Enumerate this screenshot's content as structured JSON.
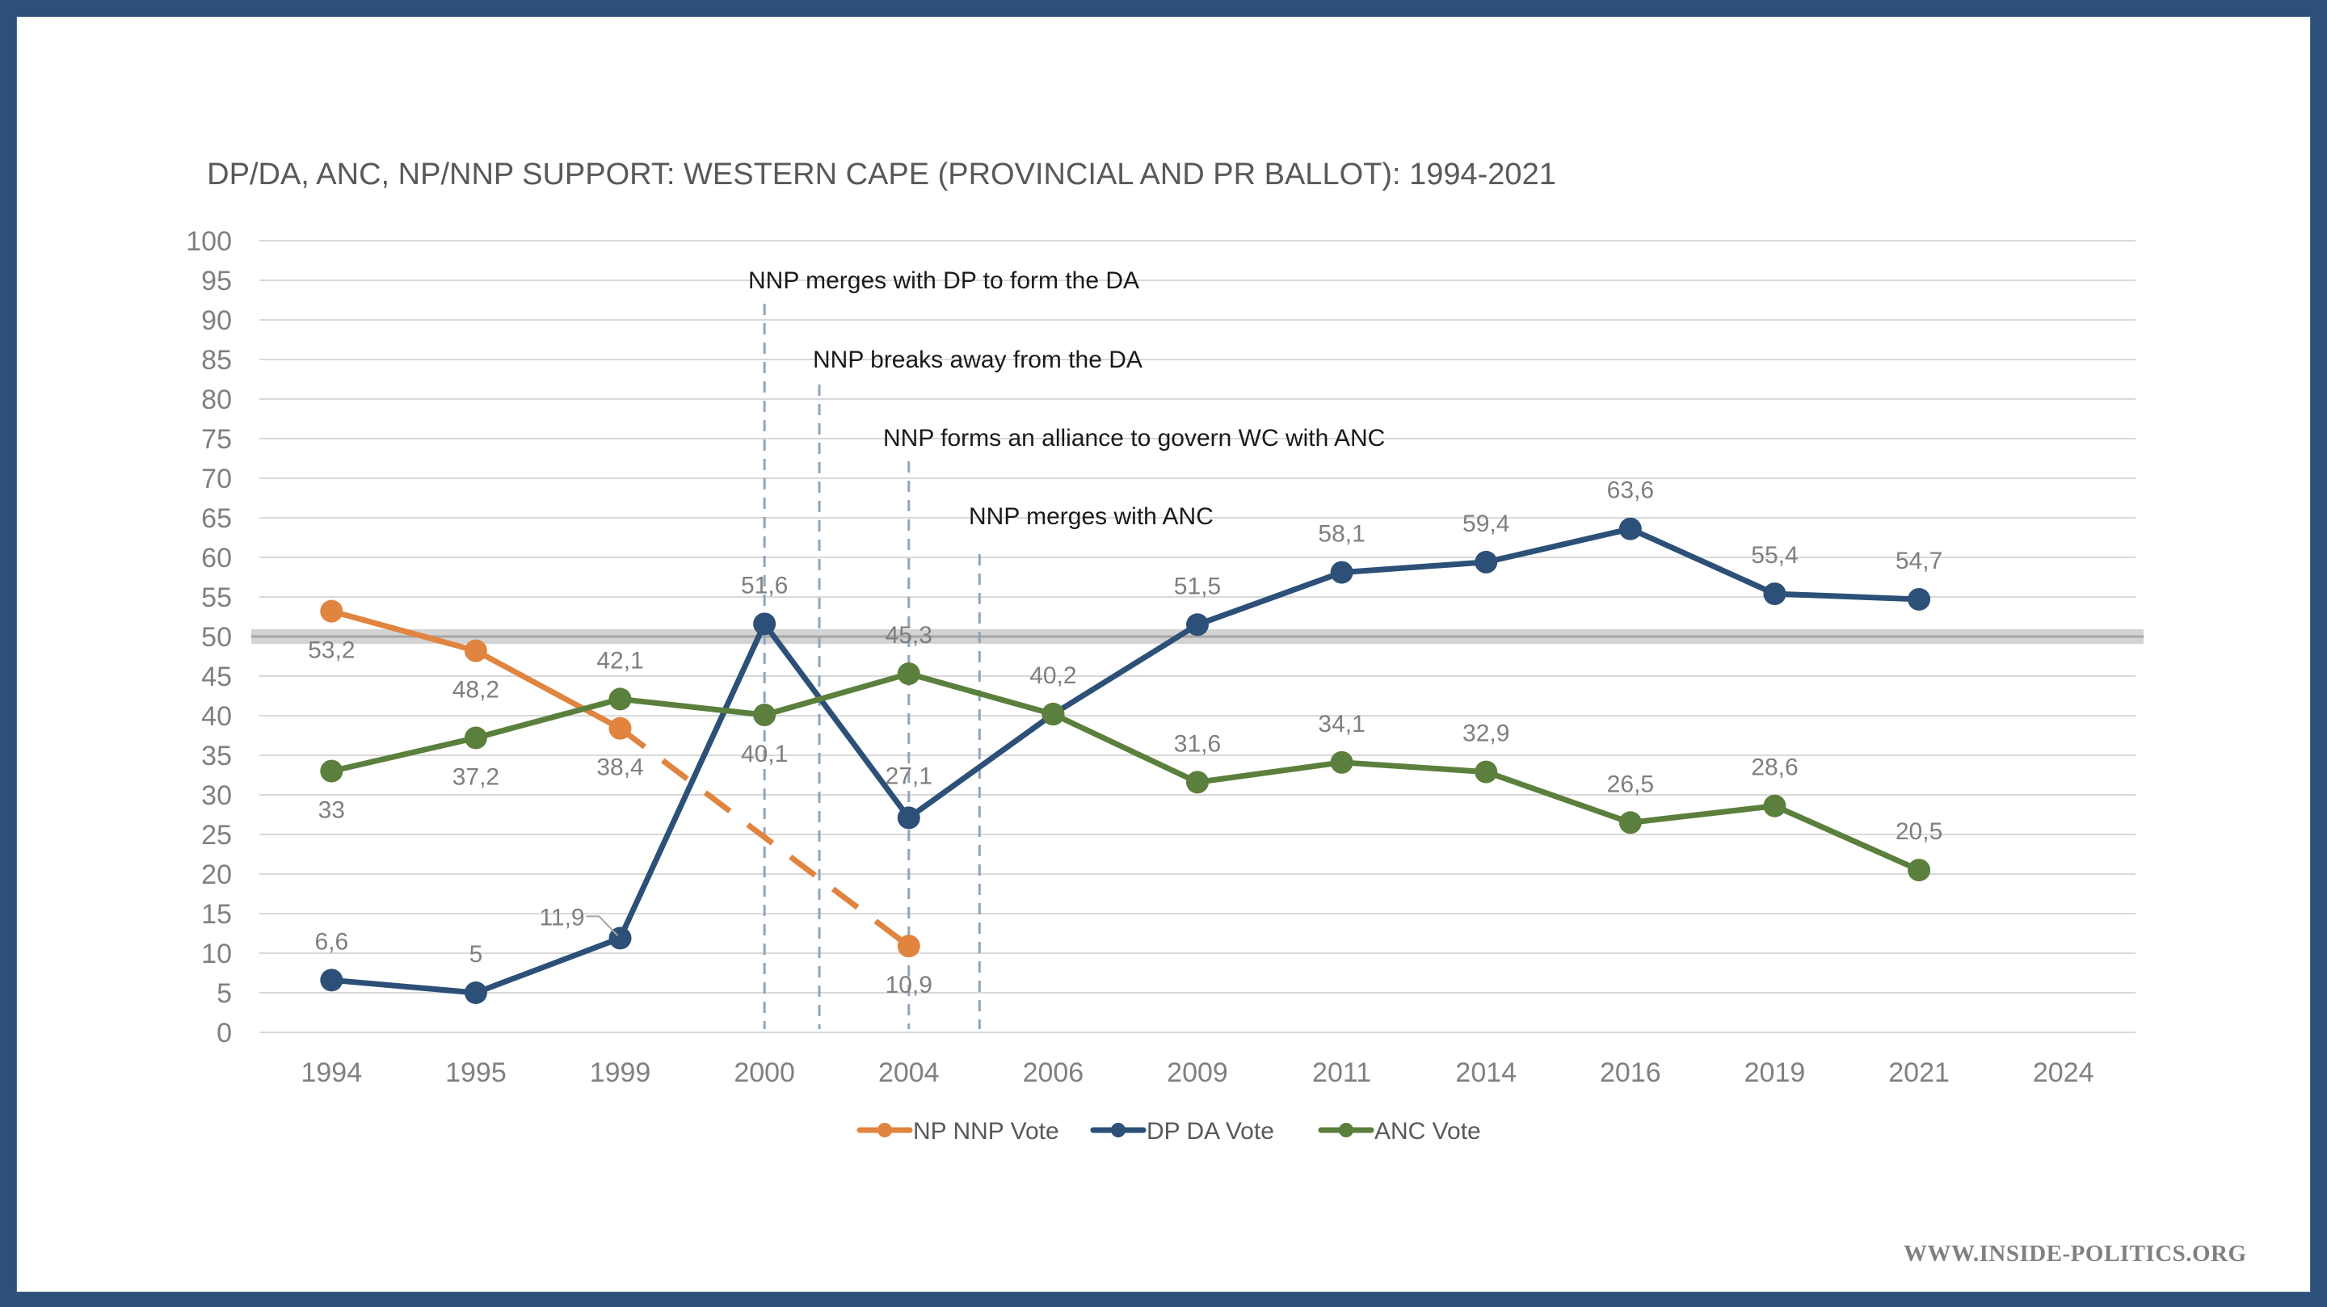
{
  "watermark": "WWW.INSIDE-POLITICS.ORG",
  "chart_data": {
    "type": "line",
    "title": "DP/DA, ANC, NP/NNP SUPPORT: WESTERN CAPE (PROVINCIAL AND PR BALLOT): 1994-2021",
    "xlabel": "",
    "ylabel": "",
    "categories": [
      "1994",
      "1995",
      "1999",
      "2000",
      "2004",
      "2006",
      "2009",
      "2011",
      "2014",
      "2016",
      "2019",
      "2021",
      "2024"
    ],
    "ylim": [
      0,
      100
    ],
    "yticks": [
      "0",
      "5",
      "10",
      "15",
      "20",
      "25",
      "30",
      "35",
      "40",
      "45",
      "50",
      "55",
      "60",
      "65",
      "70",
      "75",
      "80",
      "85",
      "90",
      "95",
      "100"
    ],
    "grid": true,
    "reference_line": {
      "value": 50,
      "color": "#a6a6a6"
    },
    "legend_position": "bottom",
    "series": [
      {
        "name": "NP NNP Vote",
        "color": "#e0843f",
        "values": [
          53.2,
          48.2,
          38.4,
          null,
          10.9,
          null,
          null,
          null,
          null,
          null,
          null,
          null,
          null
        ],
        "labels": [
          "53,2",
          "48,2",
          "38,4",
          null,
          "10,9",
          null,
          null,
          null,
          null,
          null,
          null,
          null,
          null
        ],
        "dashed_segment": {
          "from": "1999",
          "to": "2004"
        }
      },
      {
        "name": "DP DA Vote",
        "color": "#2c5077",
        "values": [
          6.6,
          5,
          11.9,
          51.6,
          27.1,
          40.2,
          51.5,
          58.1,
          59.4,
          63.6,
          55.4,
          54.7,
          null
        ],
        "labels": [
          "6,6",
          "5",
          "11,9",
          "51,6",
          "27,1",
          null,
          "51,5",
          "58,1",
          "59,4",
          "63,6",
          "55,4",
          "54,7",
          null
        ]
      },
      {
        "name": "ANC Vote",
        "color": "#5b7f3c",
        "values": [
          33,
          37.2,
          42.1,
          40.1,
          45.3,
          40.2,
          31.6,
          34.1,
          32.9,
          26.5,
          28.6,
          20.5,
          null
        ],
        "labels": [
          "33",
          "37,2",
          "42,1",
          "40,1",
          "45,3",
          "40,2",
          "31,6",
          "34,1",
          "32,9",
          "26,5",
          "28,6",
          "20,5",
          null
        ]
      }
    ],
    "annotations": [
      {
        "text": "NNP merges with DP to form the DA",
        "x_category": "2000"
      },
      {
        "text": "NNP breaks away from the DA",
        "x_between": [
          "2000",
          "2004"
        ]
      },
      {
        "text": "NNP forms an alliance to govern WC with ANC",
        "x_category": "2004"
      },
      {
        "text": "NNP merges with ANC",
        "x_between": [
          "2004",
          "2006"
        ]
      }
    ]
  }
}
